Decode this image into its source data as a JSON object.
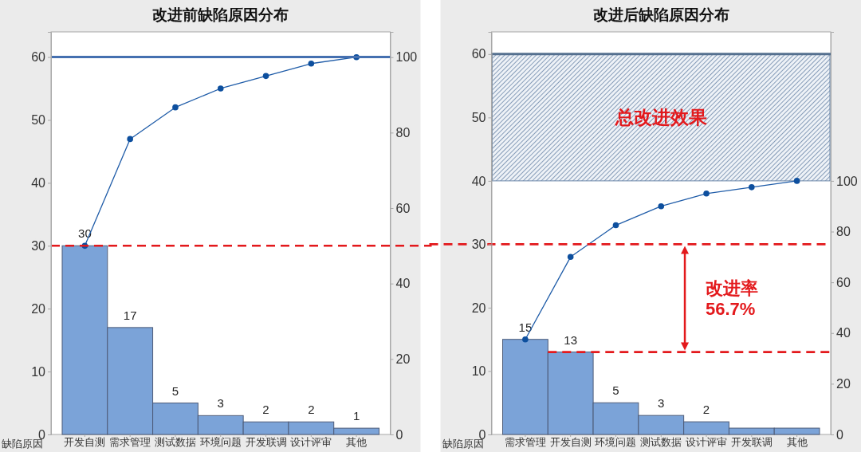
{
  "chart_data": [
    {
      "type": "bar",
      "title": "改进前缺陷原因分布",
      "xlabel": "缺陷原因",
      "categories": [
        "开发自测",
        "需求管理",
        "测试数据",
        "环境问题",
        "开发联调",
        "设计评审",
        "其他"
      ],
      "series": [
        {
          "color": "#7ba3d8",
          "values": [
            30,
            17,
            5,
            3,
            2,
            2,
            1
          ],
          "value_labels": [
            "30",
            "17",
            "5",
            "3",
            "2",
            "2",
            "1"
          ]
        },
        {
          "type": "line",
          "axis": "y2",
          "color": "#1f5ca8",
          "values": [
            50,
            78.3,
            86.7,
            91.7,
            95,
            98.3,
            100
          ]
        }
      ],
      "ylim": [
        0,
        64
      ],
      "yticks": [
        0,
        10,
        20,
        30,
        40,
        50,
        60
      ],
      "y2lim": [
        0,
        106.7
      ],
      "y2ticks": [
        0,
        20,
        40,
        60,
        80,
        100
      ],
      "marker": "circle",
      "ref_lines": [
        {
          "axis": "y",
          "value": 60,
          "color": "#4570b0"
        },
        {
          "axis": "y",
          "value": 30,
          "color": "#e3191c",
          "line_style": "dashed"
        }
      ]
    },
    {
      "type": "bar",
      "title": "改进后缺陷原因分布",
      "xlabel": "缺陷原因",
      "categories": [
        "需求管理",
        "开发自测",
        "环境问题",
        "测试数据",
        "设计评审",
        "开发联调",
        "其他"
      ],
      "series": [
        {
          "color": "#7ba3d8",
          "values": [
            15,
            13,
            5,
            3,
            2,
            1,
            1
          ],
          "value_labels": [
            "15",
            "13",
            "5",
            "3",
            "2",
            null,
            null
          ]
        },
        {
          "type": "line",
          "axis": "y2",
          "color": "#1f5ca8",
          "values": [
            37.5,
            70,
            82.5,
            90,
            95,
            97.5,
            100
          ]
        }
      ],
      "ylim": [
        0,
        63.5
      ],
      "yticks": [
        0,
        10,
        20,
        30,
        40,
        50,
        60
      ],
      "y2lim": [
        0,
        158.75
      ],
      "y2ticks": [
        0,
        20,
        40,
        60,
        80,
        100
      ],
      "marker": "circle",
      "ref_lines": [
        {
          "axis": "y",
          "value": 60,
          "color": "#55708f"
        },
        {
          "axis": "y",
          "value": 30,
          "color": "#e3191c",
          "line_style": "dashed"
        },
        {
          "axis": "y",
          "value": 13,
          "color": "#e3191c",
          "line_style": "dashed"
        }
      ],
      "bands": [
        {
          "axis": "y",
          "from": 40,
          "to": 60,
          "label": "总改进效果",
          "color": "#6b86a8"
        }
      ],
      "annotations": [
        "改进率 56.7%"
      ]
    }
  ]
}
